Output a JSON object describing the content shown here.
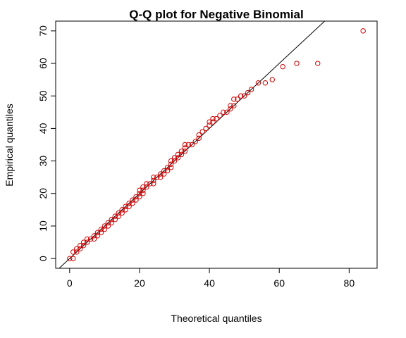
{
  "chart_data": {
    "type": "scatter",
    "title": "Q-Q plot for Negative Binomial",
    "xlabel": "Theoretical quantiles",
    "ylabel": "Empirical quantiles",
    "xlim": [
      -4,
      88
    ],
    "ylim": [
      -3,
      73
    ],
    "xticks": [
      0,
      20,
      40,
      60,
      80
    ],
    "yticks": [
      0,
      10,
      20,
      30,
      40,
      50,
      60,
      70
    ],
    "grid": false,
    "point_color": "#cc0000",
    "line_color": "#000000",
    "reference_line": {
      "intercept": 0,
      "slope": 1
    },
    "points": [
      [
        0,
        0
      ],
      [
        1,
        0
      ],
      [
        1,
        2
      ],
      [
        2,
        2
      ],
      [
        2,
        3
      ],
      [
        3,
        3
      ],
      [
        3,
        4
      ],
      [
        4,
        4
      ],
      [
        4,
        5
      ],
      [
        5,
        5
      ],
      [
        5,
        6
      ],
      [
        6,
        6
      ],
      [
        7,
        6
      ],
      [
        7,
        7
      ],
      [
        8,
        7
      ],
      [
        8,
        8
      ],
      [
        9,
        8
      ],
      [
        9,
        9
      ],
      [
        10,
        9
      ],
      [
        10,
        10
      ],
      [
        11,
        10
      ],
      [
        11,
        11
      ],
      [
        12,
        11
      ],
      [
        12,
        12
      ],
      [
        13,
        12
      ],
      [
        13,
        13
      ],
      [
        14,
        13
      ],
      [
        14,
        14
      ],
      [
        15,
        14
      ],
      [
        15,
        15
      ],
      [
        16,
        15
      ],
      [
        16,
        16
      ],
      [
        17,
        16
      ],
      [
        17,
        17
      ],
      [
        18,
        17
      ],
      [
        18,
        18
      ],
      [
        19,
        18
      ],
      [
        19,
        19
      ],
      [
        20,
        19
      ],
      [
        20,
        20
      ],
      [
        21,
        20
      ],
      [
        20,
        21
      ],
      [
        21,
        21
      ],
      [
        21,
        22
      ],
      [
        22,
        22
      ],
      [
        22,
        23
      ],
      [
        23,
        23
      ],
      [
        24,
        23
      ],
      [
        24,
        24
      ],
      [
        24,
        25
      ],
      [
        25,
        25
      ],
      [
        26,
        25
      ],
      [
        26,
        26
      ],
      [
        27,
        26
      ],
      [
        27,
        27
      ],
      [
        28,
        27
      ],
      [
        28,
        28
      ],
      [
        29,
        28
      ],
      [
        29,
        29
      ],
      [
        29,
        30
      ],
      [
        30,
        30
      ],
      [
        30,
        31
      ],
      [
        31,
        31
      ],
      [
        31,
        32
      ],
      [
        32,
        32
      ],
      [
        32,
        33
      ],
      [
        33,
        33
      ],
      [
        33,
        34
      ],
      [
        33,
        35
      ],
      [
        34,
        35
      ],
      [
        35,
        35
      ],
      [
        36,
        36
      ],
      [
        37,
        37
      ],
      [
        37,
        38
      ],
      [
        38,
        39
      ],
      [
        39,
        40
      ],
      [
        40,
        41
      ],
      [
        40,
        42
      ],
      [
        41,
        42
      ],
      [
        41,
        43
      ],
      [
        42,
        43
      ],
      [
        43,
        44
      ],
      [
        44,
        45
      ],
      [
        45,
        45
      ],
      [
        46,
        46
      ],
      [
        46,
        47
      ],
      [
        47,
        47
      ],
      [
        47,
        49
      ],
      [
        48,
        49
      ],
      [
        49,
        50
      ],
      [
        50,
        50
      ],
      [
        51,
        51
      ],
      [
        52,
        52
      ],
      [
        54,
        54
      ],
      [
        56,
        54
      ],
      [
        58,
        55
      ],
      [
        61,
        59
      ],
      [
        65,
        60
      ],
      [
        71,
        60
      ],
      [
        84,
        70
      ]
    ]
  }
}
